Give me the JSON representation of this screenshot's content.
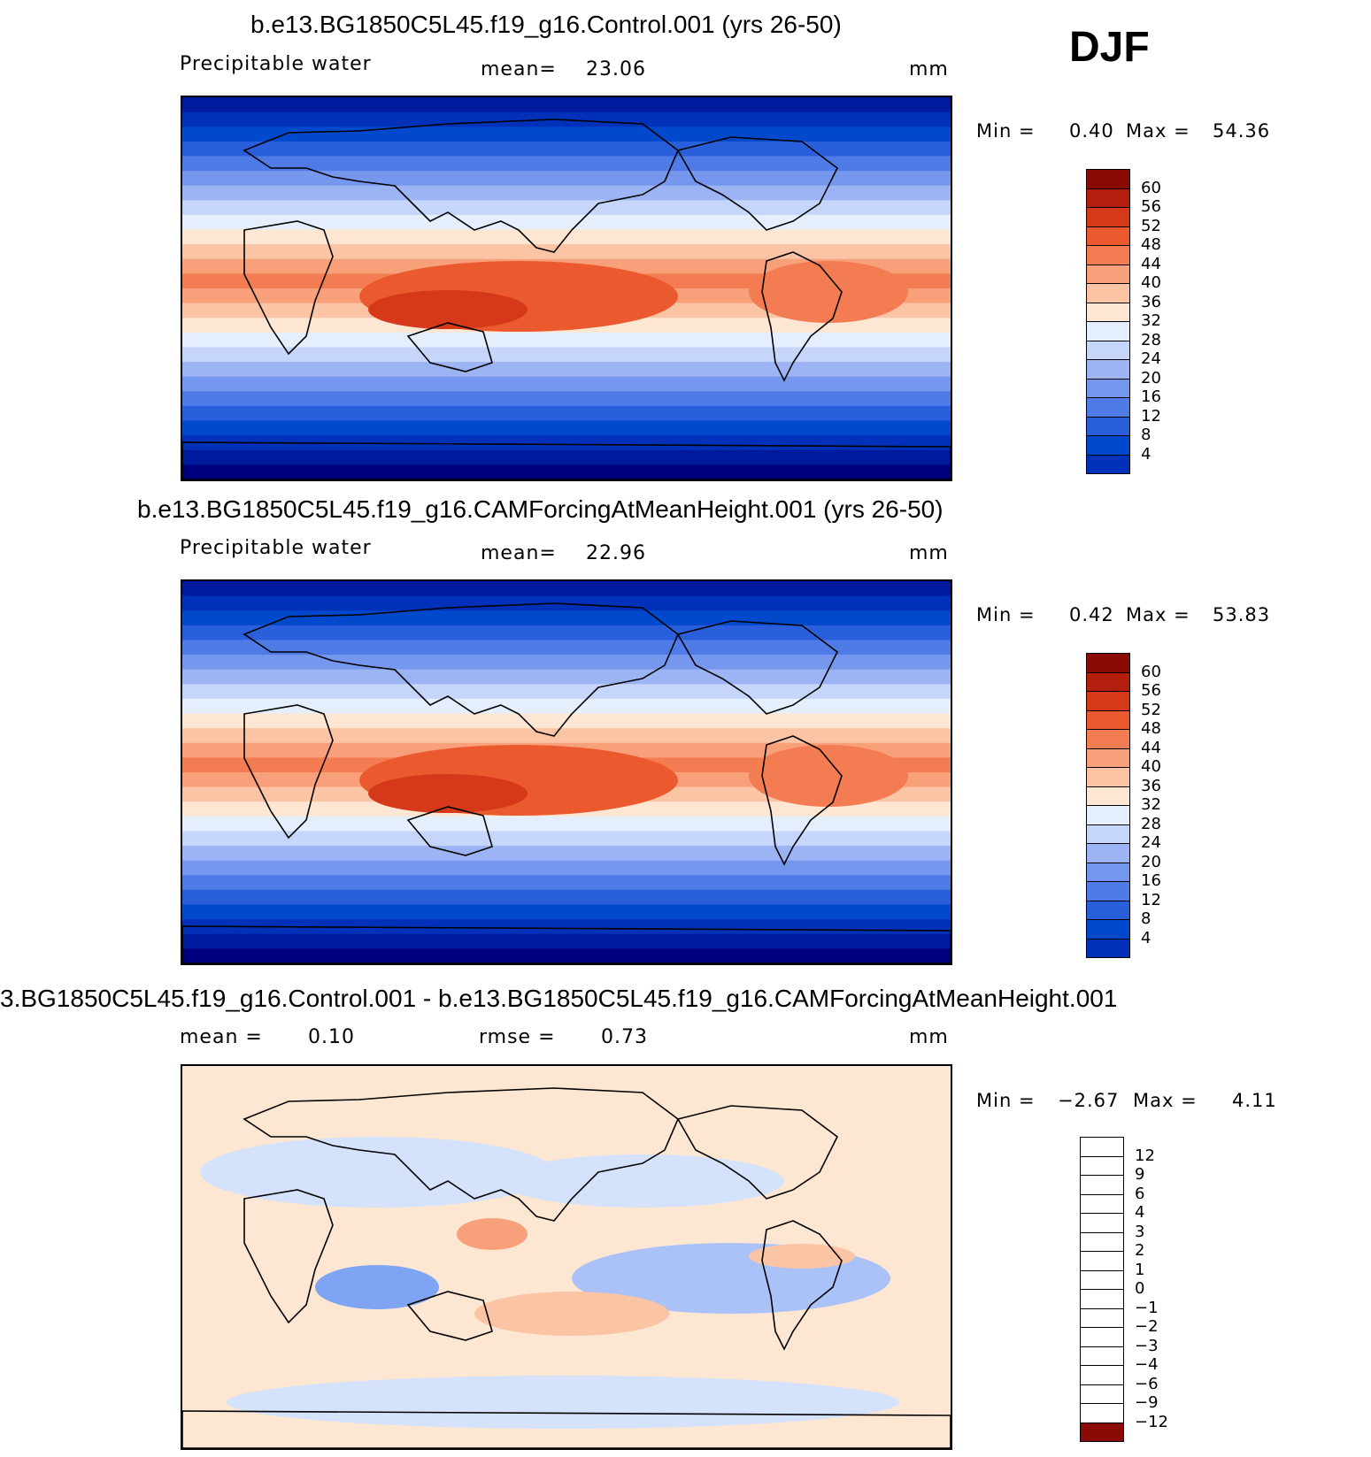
{
  "season": "DJF",
  "colors": {
    "field": [
      "#00007f",
      "#001a9e",
      "#0031b8",
      "#0048cc",
      "#2a5fdc",
      "#4f7be6",
      "#7697ee",
      "#9db4f4",
      "#c5d6fa",
      "#e4eefc",
      "#fde6d2",
      "#fbc4a4",
      "#f8a07a",
      "#f47c52",
      "#ea5a2e",
      "#d5391a",
      "#b21f0c",
      "#8a0a06"
    ],
    "diff": [
      "#00007f",
      "#001fb0",
      "#0045d6",
      "#2a66e6",
      "#5585ef",
      "#80a4f4",
      "#aac2f8",
      "#d4e2fc",
      "#fde6d2",
      "#fbc4a4",
      "#f8a07a",
      "#f47c52",
      "#ea4c22",
      "#c22a0e",
      "#8a0a06"
    ]
  },
  "chart_data": [
    {
      "type": "heatmap",
      "title": "b.e13.BG1850C5L45.f19_g16.Control.001 (yrs 26-50)",
      "variable": "Precipitable water",
      "mean_label": "mean=",
      "mean_value": "23.06",
      "units": "mm",
      "min_label": "Min =",
      "min_value": "0.40",
      "max_label": "Max =",
      "max_value": "54.36",
      "colorbar_ticks": [
        "60",
        "56",
        "52",
        "48",
        "44",
        "40",
        "36",
        "32",
        "28",
        "24",
        "20",
        "16",
        "12",
        "8",
        "4"
      ]
    },
    {
      "type": "heatmap",
      "title": "b.e13.BG1850C5L45.f19_g16.CAMForcingAtMeanHeight.001 (yrs 26-50)",
      "variable": "Precipitable water",
      "mean_label": "mean=",
      "mean_value": "22.96",
      "units": "mm",
      "min_label": "Min =",
      "min_value": "0.42",
      "max_label": "Max =",
      "max_value": "53.83",
      "colorbar_ticks": [
        "60",
        "56",
        "52",
        "48",
        "44",
        "40",
        "36",
        "32",
        "28",
        "24",
        "20",
        "16",
        "12",
        "8",
        "4"
      ]
    },
    {
      "type": "heatmap",
      "title": "3.BG1850C5L45.f19_g16.Control.001 - b.e13.BG1850C5L45.f19_g16.CAMForcingAtMeanHeight.001",
      "mean_label": "mean =",
      "mean_value": "0.10",
      "rmse_label": "rmse =",
      "rmse_value": "0.73",
      "units": "mm",
      "min_label": "Min =",
      "min_value": "−2.67",
      "max_label": "Max =",
      "max_value": "4.11",
      "colorbar_ticks": [
        "12",
        "9",
        "6",
        "4",
        "3",
        "2",
        "1",
        "0",
        "−1",
        "−2",
        "−3",
        "−4",
        "−6",
        "−9",
        "−12"
      ]
    }
  ]
}
